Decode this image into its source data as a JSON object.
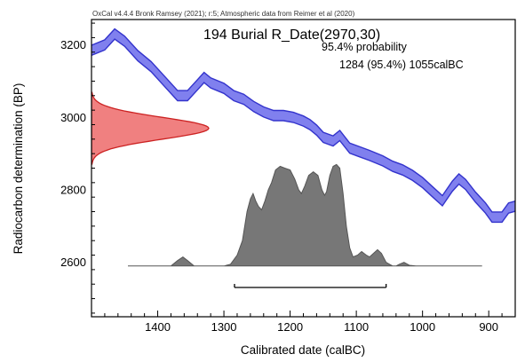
{
  "header": "OxCal v4.4.4 Bronk Ramsey (2021); r:5; Atmospheric data from Reimer et al (2020)",
  "annotation": {
    "title": "194 Burial R_Date(2970,30)",
    "probability": "95.4% probability",
    "range": "1284 (95.4%) 1055calBC"
  },
  "chart_data": {
    "type": "area",
    "xlabel": "Calibrated date (calBC)",
    "ylabel": "Radiocarbon determination (BP)",
    "xlim": [
      1500,
      860
    ],
    "ylim": [
      2450,
      3270
    ],
    "x_ticks": [
      1400,
      1300,
      1200,
      1100,
      1000,
      900
    ],
    "y_ticks": [
      2600,
      2800,
      3000,
      3200
    ],
    "x_tick_labels": [
      "1400",
      "1300",
      "1200",
      "1100",
      "1000",
      "900"
    ],
    "y_tick_labels": [
      "2600",
      "2800",
      "3000",
      "3200"
    ],
    "series": [
      {
        "kind": "calibration_curve",
        "color": "#3333cc",
        "fill": "#8080ee",
        "halfwidth": 14,
        "points": [
          [
            1500,
            3185
          ],
          [
            1480,
            3200
          ],
          [
            1465,
            3230
          ],
          [
            1450,
            3210
          ],
          [
            1430,
            3170
          ],
          [
            1410,
            3140
          ],
          [
            1390,
            3100
          ],
          [
            1370,
            3060
          ],
          [
            1355,
            3060
          ],
          [
            1340,
            3090
          ],
          [
            1330,
            3110
          ],
          [
            1320,
            3095
          ],
          [
            1300,
            3080
          ],
          [
            1285,
            3060
          ],
          [
            1270,
            3050
          ],
          [
            1255,
            3030
          ],
          [
            1240,
            3015
          ],
          [
            1225,
            3005
          ],
          [
            1210,
            3005
          ],
          [
            1195,
            3000
          ],
          [
            1180,
            2990
          ],
          [
            1170,
            2980
          ],
          [
            1160,
            2965
          ],
          [
            1150,
            2945
          ],
          [
            1135,
            2935
          ],
          [
            1125,
            2950
          ],
          [
            1110,
            2915
          ],
          [
            1095,
            2905
          ],
          [
            1080,
            2895
          ],
          [
            1060,
            2880
          ],
          [
            1045,
            2865
          ],
          [
            1030,
            2855
          ],
          [
            1015,
            2840
          ],
          [
            1000,
            2820
          ],
          [
            985,
            2795
          ],
          [
            970,
            2770
          ],
          [
            955,
            2810
          ],
          [
            945,
            2830
          ],
          [
            935,
            2815
          ],
          [
            920,
            2780
          ],
          [
            905,
            2750
          ],
          [
            895,
            2725
          ],
          [
            880,
            2725
          ],
          [
            870,
            2750
          ],
          [
            860,
            2755
          ]
        ]
      },
      {
        "kind": "radiocarbon_measurement",
        "mean_bp": 2970,
        "sd_bp": 30,
        "color": "#cc2222",
        "fill": "#f08080"
      },
      {
        "kind": "calibrated_probability",
        "color": "#555555",
        "fill": "#777777",
        "points": [
          [
            1445,
            2590
          ],
          [
            1380,
            2590
          ],
          [
            1370,
            2605
          ],
          [
            1362,
            2615
          ],
          [
            1355,
            2605
          ],
          [
            1345,
            2590
          ],
          [
            1300,
            2590
          ],
          [
            1290,
            2595
          ],
          [
            1280,
            2620
          ],
          [
            1272,
            2660
          ],
          [
            1265,
            2740
          ],
          [
            1260,
            2775
          ],
          [
            1256,
            2790
          ],
          [
            1252,
            2770
          ],
          [
            1248,
            2755
          ],
          [
            1243,
            2745
          ],
          [
            1238,
            2770
          ],
          [
            1233,
            2800
          ],
          [
            1228,
            2820
          ],
          [
            1222,
            2855
          ],
          [
            1215,
            2865
          ],
          [
            1208,
            2860
          ],
          [
            1200,
            2855
          ],
          [
            1193,
            2830
          ],
          [
            1187,
            2800
          ],
          [
            1183,
            2790
          ],
          [
            1178,
            2810
          ],
          [
            1172,
            2840
          ],
          [
            1165,
            2850
          ],
          [
            1158,
            2840
          ],
          [
            1152,
            2800
          ],
          [
            1148,
            2785
          ],
          [
            1145,
            2795
          ],
          [
            1140,
            2840
          ],
          [
            1135,
            2865
          ],
          [
            1130,
            2870
          ],
          [
            1125,
            2860
          ],
          [
            1120,
            2790
          ],
          [
            1115,
            2700
          ],
          [
            1110,
            2640
          ],
          [
            1105,
            2615
          ],
          [
            1098,
            2620
          ],
          [
            1092,
            2630
          ],
          [
            1085,
            2620
          ],
          [
            1080,
            2615
          ],
          [
            1074,
            2625
          ],
          [
            1068,
            2635
          ],
          [
            1062,
            2625
          ],
          [
            1055,
            2600
          ],
          [
            1050,
            2595
          ],
          [
            1045,
            2590
          ],
          [
            1040,
            2590
          ],
          [
            1035,
            2595
          ],
          [
            1028,
            2600
          ],
          [
            1020,
            2592
          ],
          [
            1010,
            2590
          ],
          [
            910,
            2590
          ]
        ]
      }
    ],
    "hpd_range_calbc": [
      1284,
      1055
    ]
  }
}
